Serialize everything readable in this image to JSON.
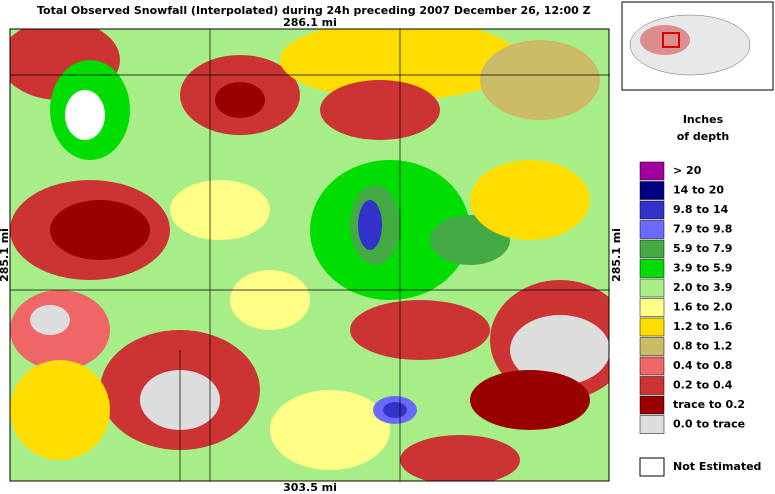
{
  "header": {
    "title": "Total Observed Snowfall (Interpolated) during 24h preceding 2007 December 26, 12:00 Z"
  },
  "map": {
    "top_scale": "286.1 mi",
    "bottom_scale": "303.5 mi",
    "left_scale": "285.1 mi",
    "right_scale": "285.1 mi"
  },
  "legend": {
    "title_line1": "Inches",
    "title_line2": "of depth",
    "items": [
      {
        "label": "> 20",
        "color": "#a000a0"
      },
      {
        "label": "14 to 20",
        "color": "#000080"
      },
      {
        "label": "9.8 to 14",
        "color": "#3333cc"
      },
      {
        "label": "7.9 to 9.8",
        "color": "#6a6aff"
      },
      {
        "label": "5.9 to 7.9",
        "color": "#44aa44"
      },
      {
        "label": "3.9 to 5.9",
        "color": "#00dd00"
      },
      {
        "label": "2.0 to 3.9",
        "color": "#a8ee88"
      },
      {
        "label": "1.6 to 2.0",
        "color": "#ffff88"
      },
      {
        "label": "1.2 to 1.6",
        "color": "#ffdd00"
      },
      {
        "label": "0.8 to 1.2",
        "color": "#ccbb66"
      },
      {
        "label": "0.4 to 0.8",
        "color": "#ee6666"
      },
      {
        "label": "0.2 to 0.4",
        "color": "#cc3333"
      },
      {
        "label": "trace to  0.2",
        "color": "#990000"
      },
      {
        "label": "0.0 to trace",
        "color": "#dddddd"
      }
    ],
    "not_estimated": "Not Estimated"
  }
}
